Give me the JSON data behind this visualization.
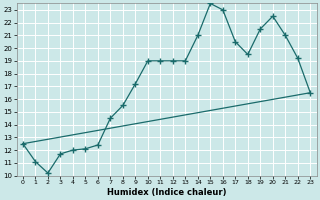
{
  "xlabel": "Humidex (Indice chaleur)",
  "bg_color": "#cce8e8",
  "grid_color": "#ffffff",
  "line_color": "#1a6b6b",
  "xlim": [
    -0.5,
    23.5
  ],
  "ylim": [
    10,
    23.5
  ],
  "xticks": [
    0,
    1,
    2,
    3,
    4,
    5,
    6,
    7,
    8,
    9,
    10,
    11,
    12,
    13,
    14,
    15,
    16,
    17,
    18,
    19,
    20,
    21,
    22,
    23
  ],
  "yticks": [
    10,
    11,
    12,
    13,
    14,
    15,
    16,
    17,
    18,
    19,
    20,
    21,
    22,
    23
  ],
  "line1_x": [
    0,
    1,
    2,
    3,
    4,
    5,
    6,
    7,
    8,
    9,
    10,
    11,
    12,
    13,
    14,
    15,
    16,
    17,
    18,
    19,
    20,
    21,
    22,
    23
  ],
  "line1_y": [
    12.5,
    11.1,
    10.2,
    11.7,
    12.0,
    12.1,
    12.4,
    14.5,
    15.5,
    17.2,
    19.0,
    19.0,
    19.0,
    19.0,
    21.0,
    23.5,
    23.0,
    20.5,
    19.5,
    21.5,
    22.5,
    21.0,
    19.2,
    16.5
  ],
  "line2_x": [
    0,
    23
  ],
  "line2_y": [
    12.5,
    16.5
  ],
  "figsize": [
    3.2,
    2.0
  ],
  "dpi": 100
}
